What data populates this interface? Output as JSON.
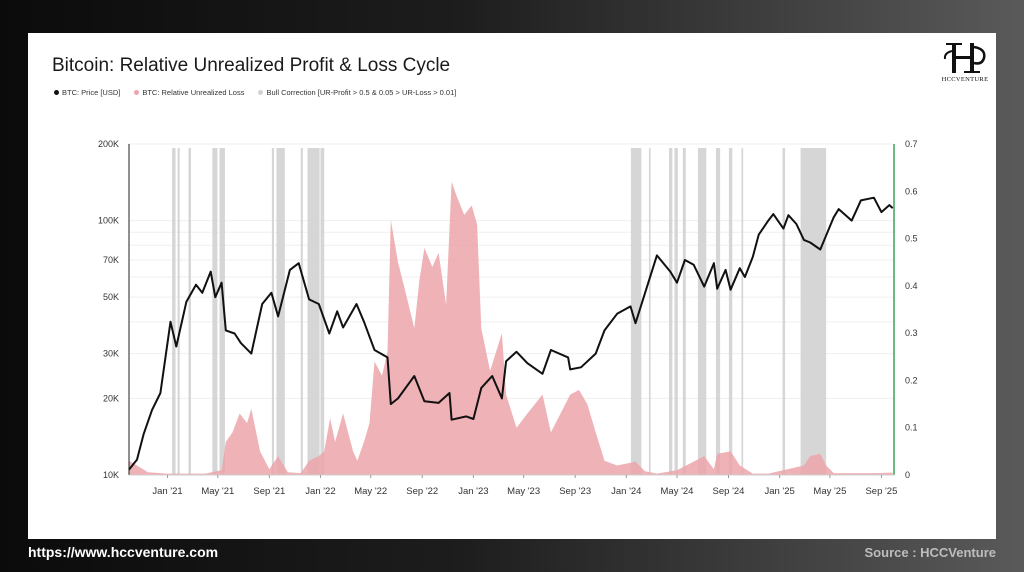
{
  "title": "Bitcoin: Relative Unrealized Profit & Loss Cycle",
  "footer": {
    "website": "https://www.hccventure.com",
    "source": "Source : HCCVenture"
  },
  "logo": {
    "text": "HCCVENTURE"
  },
  "colors": {
    "price": "#111111",
    "loss": "#eba4aa",
    "correction": "#d2d2d2",
    "right_axis": "#3aa35a"
  },
  "chart_data": {
    "type": "line",
    "title": "Bitcoin: Relative Unrealized Profit & Loss Cycle",
    "legend": [
      {
        "name": "BTC: Price [USD]",
        "color": "#111111",
        "marker": "dot"
      },
      {
        "name": "BTC: Relative Unrealized Loss",
        "color": "#eba4aa",
        "marker": "dot"
      },
      {
        "name": "Bull Correction [UR-Profit > 0.5 & 0.05 > UR-Loss > 0.01]",
        "color": "#d2d2d2",
        "marker": "dot"
      }
    ],
    "legend_position": "top-left",
    "x_range": [
      "2020-10-01",
      "2025-10-01"
    ],
    "x_ticks": [
      {
        "date": "2021-01-01",
        "label": "Jan '21"
      },
      {
        "date": "2021-05-01",
        "label": "May '21"
      },
      {
        "date": "2021-09-01",
        "label": "Sep '21"
      },
      {
        "date": "2022-01-01",
        "label": "Jan '22"
      },
      {
        "date": "2022-05-01",
        "label": "May '22"
      },
      {
        "date": "2022-09-01",
        "label": "Sep '22"
      },
      {
        "date": "2023-01-01",
        "label": "Jan '23"
      },
      {
        "date": "2023-05-01",
        "label": "May '23"
      },
      {
        "date": "2023-09-01",
        "label": "Sep '23"
      },
      {
        "date": "2024-01-01",
        "label": "Jan '24"
      },
      {
        "date": "2024-05-01",
        "label": "May '24"
      },
      {
        "date": "2024-09-01",
        "label": "Sep '24"
      },
      {
        "date": "2025-01-01",
        "label": "Jan '25"
      },
      {
        "date": "2025-05-01",
        "label": "May '25"
      },
      {
        "date": "2025-09-01",
        "label": "Sep '25"
      }
    ],
    "y_left": {
      "scale": "log",
      "range": [
        10000,
        200000
      ],
      "ticks": [
        {
          "value": 10000,
          "label": "10K"
        },
        {
          "value": 20000,
          "label": "20K"
        },
        {
          "value": 30000,
          "label": "30K"
        },
        {
          "value": 50000,
          "label": "50K"
        },
        {
          "value": 70000,
          "label": "70K"
        },
        {
          "value": 100000,
          "label": "100K"
        },
        {
          "value": 200000,
          "label": "200K"
        }
      ]
    },
    "y_right": {
      "scale": "linear",
      "range": [
        0,
        0.7
      ],
      "ticks": [
        {
          "value": 0,
          "label": "0"
        },
        {
          "value": 0.1,
          "label": "0.1"
        },
        {
          "value": 0.2,
          "label": "0.2"
        },
        {
          "value": 0.3,
          "label": "0.3"
        },
        {
          "value": 0.4,
          "label": "0.4"
        },
        {
          "value": 0.5,
          "label": "0.5"
        },
        {
          "value": 0.6,
          "label": "0.6"
        },
        {
          "value": 0.7,
          "label": "0.7"
        }
      ]
    },
    "grid": true,
    "series": [
      {
        "name": "BTC: Price [USD]",
        "axis": "left",
        "kind": "line",
        "points": [
          [
            "2020-10-01",
            10500
          ],
          [
            "2020-10-20",
            11500
          ],
          [
            "2020-11-05",
            14500
          ],
          [
            "2020-11-25",
            18000
          ],
          [
            "2020-12-15",
            21000
          ],
          [
            "2021-01-08",
            40000
          ],
          [
            "2021-01-22",
            32000
          ],
          [
            "2021-02-15",
            48000
          ],
          [
            "2021-03-10",
            56000
          ],
          [
            "2021-03-25",
            52000
          ],
          [
            "2021-04-14",
            63000
          ],
          [
            "2021-04-25",
            50000
          ],
          [
            "2021-05-10",
            57000
          ],
          [
            "2021-05-20",
            37000
          ],
          [
            "2021-06-10",
            36000
          ],
          [
            "2021-06-25",
            33000
          ],
          [
            "2021-07-20",
            30000
          ],
          [
            "2021-08-15",
            47000
          ],
          [
            "2021-09-06",
            52000
          ],
          [
            "2021-09-22",
            42000
          ],
          [
            "2021-10-20",
            64000
          ],
          [
            "2021-11-10",
            68000
          ],
          [
            "2021-12-05",
            49000
          ],
          [
            "2021-12-28",
            47000
          ],
          [
            "2022-01-22",
            36000
          ],
          [
            "2022-02-10",
            44000
          ],
          [
            "2022-02-24",
            38000
          ],
          [
            "2022-03-28",
            47000
          ],
          [
            "2022-04-15",
            40000
          ],
          [
            "2022-05-10",
            31000
          ],
          [
            "2022-06-10",
            29000
          ],
          [
            "2022-06-18",
            19000
          ],
          [
            "2022-07-05",
            20000
          ],
          [
            "2022-08-13",
            24500
          ],
          [
            "2022-09-06",
            19500
          ],
          [
            "2022-10-10",
            19200
          ],
          [
            "2022-11-05",
            21000
          ],
          [
            "2022-11-10",
            16500
          ],
          [
            "2022-12-15",
            17000
          ],
          [
            "2023-01-01",
            16600
          ],
          [
            "2023-01-20",
            22000
          ],
          [
            "2023-02-15",
            24500
          ],
          [
            "2023-03-10",
            20000
          ],
          [
            "2023-03-20",
            28000
          ],
          [
            "2023-04-14",
            30500
          ],
          [
            "2023-05-10",
            27500
          ],
          [
            "2023-06-15",
            25000
          ],
          [
            "2023-07-05",
            31000
          ],
          [
            "2023-08-15",
            29000
          ],
          [
            "2023-08-20",
            26000
          ],
          [
            "2023-09-15",
            26500
          ],
          [
            "2023-10-20",
            30000
          ],
          [
            "2023-11-10",
            37000
          ],
          [
            "2023-12-10",
            43000
          ],
          [
            "2024-01-11",
            46000
          ],
          [
            "2024-01-23",
            39500
          ],
          [
            "2024-02-15",
            52000
          ],
          [
            "2024-03-14",
            73000
          ],
          [
            "2024-04-15",
            63000
          ],
          [
            "2024-05-01",
            57000
          ],
          [
            "2024-05-20",
            70000
          ],
          [
            "2024-06-10",
            67000
          ],
          [
            "2024-07-05",
            55000
          ],
          [
            "2024-07-28",
            68000
          ],
          [
            "2024-08-05",
            54000
          ],
          [
            "2024-08-25",
            64000
          ],
          [
            "2024-09-06",
            53500
          ],
          [
            "2024-09-28",
            65000
          ],
          [
            "2024-10-10",
            60000
          ],
          [
            "2024-10-29",
            72000
          ],
          [
            "2024-11-12",
            88000
          ],
          [
            "2024-12-05",
            100000
          ],
          [
            "2024-12-17",
            106000
          ],
          [
            "2025-01-10",
            93000
          ],
          [
            "2025-01-22",
            105000
          ],
          [
            "2025-02-10",
            97000
          ],
          [
            "2025-02-28",
            84000
          ],
          [
            "2025-03-15",
            82000
          ],
          [
            "2025-04-08",
            77000
          ],
          [
            "2025-05-10",
            103000
          ],
          [
            "2025-05-22",
            111000
          ],
          [
            "2025-06-22",
            100000
          ],
          [
            "2025-07-14",
            120000
          ],
          [
            "2025-08-14",
            123000
          ],
          [
            "2025-09-01",
            108000
          ],
          [
            "2025-09-20",
            115000
          ],
          [
            "2025-09-28",
            112000
          ]
        ]
      },
      {
        "name": "BTC: Relative Unrealized Loss",
        "axis": "right",
        "kind": "area",
        "points": [
          [
            "2020-10-01",
            0.03
          ],
          [
            "2020-10-20",
            0.02
          ],
          [
            "2020-11-15",
            0.006
          ],
          [
            "2021-01-01",
            0.003
          ],
          [
            "2021-04-01",
            0.003
          ],
          [
            "2021-05-10",
            0.01
          ],
          [
            "2021-05-20",
            0.07
          ],
          [
            "2021-06-05",
            0.09
          ],
          [
            "2021-06-22",
            0.13
          ],
          [
            "2021-07-10",
            0.11
          ],
          [
            "2021-07-20",
            0.14
          ],
          [
            "2021-08-10",
            0.05
          ],
          [
            "2021-09-01",
            0.012
          ],
          [
            "2021-09-22",
            0.04
          ],
          [
            "2021-10-15",
            0.006
          ],
          [
            "2021-11-15",
            0.004
          ],
          [
            "2021-12-05",
            0.03
          ],
          [
            "2021-12-28",
            0.04
          ],
          [
            "2022-01-10",
            0.05
          ],
          [
            "2022-01-24",
            0.12
          ],
          [
            "2022-02-05",
            0.07
          ],
          [
            "2022-02-24",
            0.13
          ],
          [
            "2022-03-20",
            0.05
          ],
          [
            "2022-03-30",
            0.03
          ],
          [
            "2022-04-15",
            0.07
          ],
          [
            "2022-04-28",
            0.11
          ],
          [
            "2022-05-10",
            0.24
          ],
          [
            "2022-05-28",
            0.21
          ],
          [
            "2022-06-10",
            0.26
          ],
          [
            "2022-06-18",
            0.54
          ],
          [
            "2022-07-05",
            0.45
          ],
          [
            "2022-07-25",
            0.38
          ],
          [
            "2022-08-13",
            0.31
          ],
          [
            "2022-08-25",
            0.41
          ],
          [
            "2022-09-06",
            0.48
          ],
          [
            "2022-09-25",
            0.44
          ],
          [
            "2022-10-10",
            0.47
          ],
          [
            "2022-10-28",
            0.36
          ],
          [
            "2022-11-10",
            0.62
          ],
          [
            "2022-11-22",
            0.59
          ],
          [
            "2022-12-10",
            0.55
          ],
          [
            "2022-12-28",
            0.57
          ],
          [
            "2023-01-10",
            0.53
          ],
          [
            "2023-01-20",
            0.31
          ],
          [
            "2023-02-10",
            0.22
          ],
          [
            "2023-03-10",
            0.3
          ],
          [
            "2023-03-20",
            0.17
          ],
          [
            "2023-04-14",
            0.1
          ],
          [
            "2023-05-10",
            0.13
          ],
          [
            "2023-06-15",
            0.17
          ],
          [
            "2023-07-05",
            0.09
          ],
          [
            "2023-08-20",
            0.17
          ],
          [
            "2023-09-10",
            0.18
          ],
          [
            "2023-09-30",
            0.15
          ],
          [
            "2023-10-20",
            0.09
          ],
          [
            "2023-11-10",
            0.03
          ],
          [
            "2023-12-10",
            0.02
          ],
          [
            "2024-01-23",
            0.028
          ],
          [
            "2024-02-15",
            0.008
          ],
          [
            "2024-03-14",
            0.003
          ],
          [
            "2024-05-01",
            0.01
          ],
          [
            "2024-07-05",
            0.04
          ],
          [
            "2024-07-28",
            0.012
          ],
          [
            "2024-08-05",
            0.045
          ],
          [
            "2024-09-06",
            0.05
          ],
          [
            "2024-09-28",
            0.02
          ],
          [
            "2024-10-29",
            0.003
          ],
          [
            "2024-12-05",
            0.003
          ],
          [
            "2025-02-28",
            0.02
          ],
          [
            "2025-03-15",
            0.04
          ],
          [
            "2025-04-08",
            0.045
          ],
          [
            "2025-04-22",
            0.02
          ],
          [
            "2025-05-10",
            0.004
          ],
          [
            "2025-08-20",
            0.004
          ],
          [
            "2025-09-28",
            0.005
          ]
        ]
      }
    ],
    "bull_correction_periods": [
      [
        "2021-01-12",
        "2021-01-20"
      ],
      [
        "2021-01-25",
        "2021-01-30"
      ],
      [
        "2021-02-20",
        "2021-02-26"
      ],
      [
        "2021-04-18",
        "2021-04-30"
      ],
      [
        "2021-05-05",
        "2021-05-18"
      ],
      [
        "2021-09-07",
        "2021-09-12"
      ],
      [
        "2021-09-18",
        "2021-10-08"
      ],
      [
        "2021-11-15",
        "2021-11-20"
      ],
      [
        "2021-12-01",
        "2021-12-30"
      ],
      [
        "2022-01-01",
        "2022-01-10"
      ],
      [
        "2024-01-12",
        "2024-02-06"
      ],
      [
        "2024-02-24",
        "2024-02-28"
      ],
      [
        "2024-04-12",
        "2024-04-20"
      ],
      [
        "2024-04-25",
        "2024-05-03"
      ],
      [
        "2024-05-15",
        "2024-05-22"
      ],
      [
        "2024-06-20",
        "2024-07-10"
      ],
      [
        "2024-08-02",
        "2024-08-12"
      ],
      [
        "2024-09-02",
        "2024-09-10"
      ],
      [
        "2024-10-02",
        "2024-10-06"
      ],
      [
        "2025-01-08",
        "2025-01-14"
      ],
      [
        "2025-02-20",
        "2025-04-22"
      ]
    ]
  }
}
